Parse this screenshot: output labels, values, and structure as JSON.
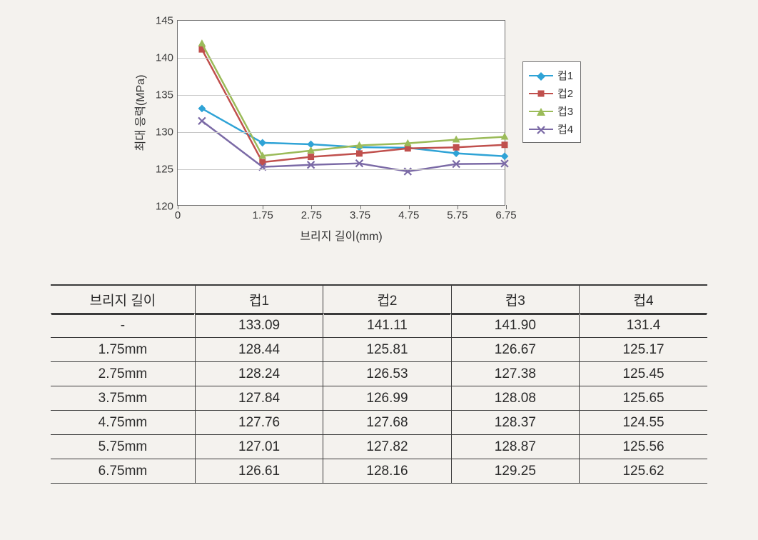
{
  "chart": {
    "type": "line",
    "background_color": "#ffffff",
    "grid_color": "#c8c8c8",
    "axis_color": "#6f6f6f",
    "font_family": "Malgun Gothic",
    "tick_fontsize": 15,
    "axis_title_fontsize": 16,
    "y_title": "최대 응력(MPa)",
    "x_title": "브리지 길이(mm)",
    "ylim": [
      120,
      145
    ],
    "ytick_step": 5,
    "yticks": [
      120,
      125,
      130,
      135,
      140,
      145
    ],
    "xlim": [
      0,
      6.75
    ],
    "xticks": [
      0,
      1.75,
      2.75,
      3.75,
      4.75,
      5.75,
      6.75
    ],
    "x_values": [
      0.5,
      1.75,
      2.75,
      3.75,
      4.75,
      5.75,
      6.75
    ],
    "line_width": 2.5,
    "marker_size": 9,
    "series": [
      {
        "name": "컵1",
        "color": "#2fa3d6",
        "marker": "diamond",
        "values": [
          133.09,
          128.44,
          128.24,
          127.84,
          127.76,
          127.01,
          126.61
        ]
      },
      {
        "name": "컵2",
        "color": "#c0504d",
        "marker": "square",
        "values": [
          141.11,
          125.81,
          126.53,
          126.99,
          127.68,
          127.82,
          128.16
        ]
      },
      {
        "name": "컵3",
        "color": "#9bbb59",
        "marker": "triangle",
        "values": [
          141.9,
          126.67,
          127.38,
          128.08,
          128.37,
          128.87,
          129.25
        ]
      },
      {
        "name": "컵4",
        "color": "#7b6aa6",
        "marker": "x",
        "values": [
          131.4,
          125.17,
          125.45,
          125.65,
          124.55,
          125.56,
          125.62
        ]
      }
    ],
    "legend": {
      "position": "right",
      "border_color": "#6f6f6f",
      "background_color": "#ffffff"
    }
  },
  "table": {
    "columns": [
      "브리지 길이",
      "컵1",
      "컵2",
      "컵3",
      "컵4"
    ],
    "column_widths": [
      "22%",
      "19.5%",
      "19.5%",
      "19.5%",
      "19.5%"
    ],
    "border_color": "#3a3a3a",
    "fontsize": 19,
    "rows": [
      [
        "-",
        "133.09",
        "141.11",
        "141.90",
        "131.4"
      ],
      [
        "1.75mm",
        "128.44",
        "125.81",
        "126.67",
        "125.17"
      ],
      [
        "2.75mm",
        "128.24",
        "126.53",
        "127.38",
        "125.45"
      ],
      [
        "3.75mm",
        "127.84",
        "126.99",
        "128.08",
        "125.65"
      ],
      [
        "4.75mm",
        "127.76",
        "127.68",
        "128.37",
        "124.55"
      ],
      [
        "5.75mm",
        "127.01",
        "127.82",
        "128.87",
        "125.56"
      ],
      [
        "6.75mm",
        "126.61",
        "128.16",
        "129.25",
        "125.62"
      ]
    ]
  }
}
